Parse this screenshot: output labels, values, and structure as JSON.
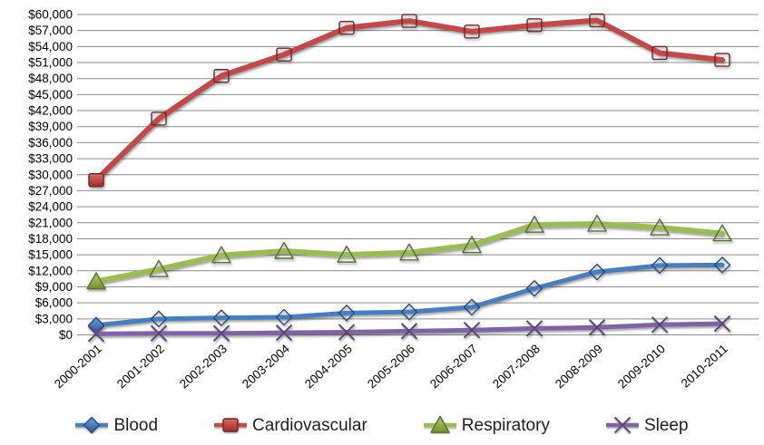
{
  "chart_data": {
    "type": "line",
    "title": "",
    "xlabel": "",
    "ylabel": "",
    "categories": [
      "2000-2001",
      "2001-2002",
      "2002-2003",
      "2003-2004",
      "2004-2005",
      "2005-2006",
      "2006-2007",
      "2007-2008",
      "2008-2009",
      "2009-2010",
      "2010-2011"
    ],
    "series": [
      {
        "name": "Blood",
        "marker": "diamond",
        "line_color": "#4a7ebb",
        "marker_fill_light": "#6f9bd4",
        "marker_fill_dark": "#2f5b9d",
        "marker_stroke": "#27497e",
        "values": [
          1800,
          3000,
          3200,
          3300,
          4100,
          4300,
          5200,
          8700,
          11800,
          13000,
          13100
        ]
      },
      {
        "name": "Cardiovascular",
        "marker": "square",
        "line_color": "#be4b48",
        "marker_fill_light": "#d96b67",
        "marker_fill_dark": "#a02d2a",
        "marker_stroke": "#6e2523",
        "values": [
          29000,
          40500,
          48500,
          52500,
          57500,
          58800,
          56800,
          58000,
          58900,
          52800,
          51500
        ]
      },
      {
        "name": "Respiratory",
        "marker": "triangle",
        "line_color": "#9bbb59",
        "marker_fill_light": "#b0ca74",
        "marker_fill_dark": "#74922e",
        "marker_stroke": "#55702a",
        "values": [
          10000,
          12300,
          14900,
          15700,
          15000,
          15400,
          16800,
          20600,
          20800,
          20100,
          19000
        ]
      },
      {
        "name": "Sleep",
        "marker": "x",
        "line_color": "#8064a2",
        "marker_fill_light": "#8064a2",
        "marker_fill_dark": "#8064a2",
        "marker_stroke": "#5d4878",
        "values": [
          200,
          300,
          300,
          400,
          500,
          700,
          900,
          1200,
          1400,
          1900,
          2100
        ]
      }
    ],
    "y_axis": {
      "min": 0,
      "max": 60000,
      "step": 3000,
      "tick_labels": [
        "$60,000",
        "$57,000",
        "$54,000",
        "$51,000",
        "$48,000",
        "$45,000",
        "$42,000",
        "$39,000",
        "$36,000",
        "$33,000",
        "$30,000",
        "$27,000",
        "$24,000",
        "$21,000",
        "$18,000",
        "$15,000",
        "$12,000",
        "$9,000",
        "$6,000",
        "$3,000",
        "$0"
      ]
    },
    "legend_position": "bottom",
    "gridlines": true,
    "x_label_rotation_deg": -42
  },
  "colors": {
    "background": "#ffffff",
    "gridline": "#8c8c8c",
    "axis_text": "#000000",
    "legend_text": "#1f1f1f"
  }
}
